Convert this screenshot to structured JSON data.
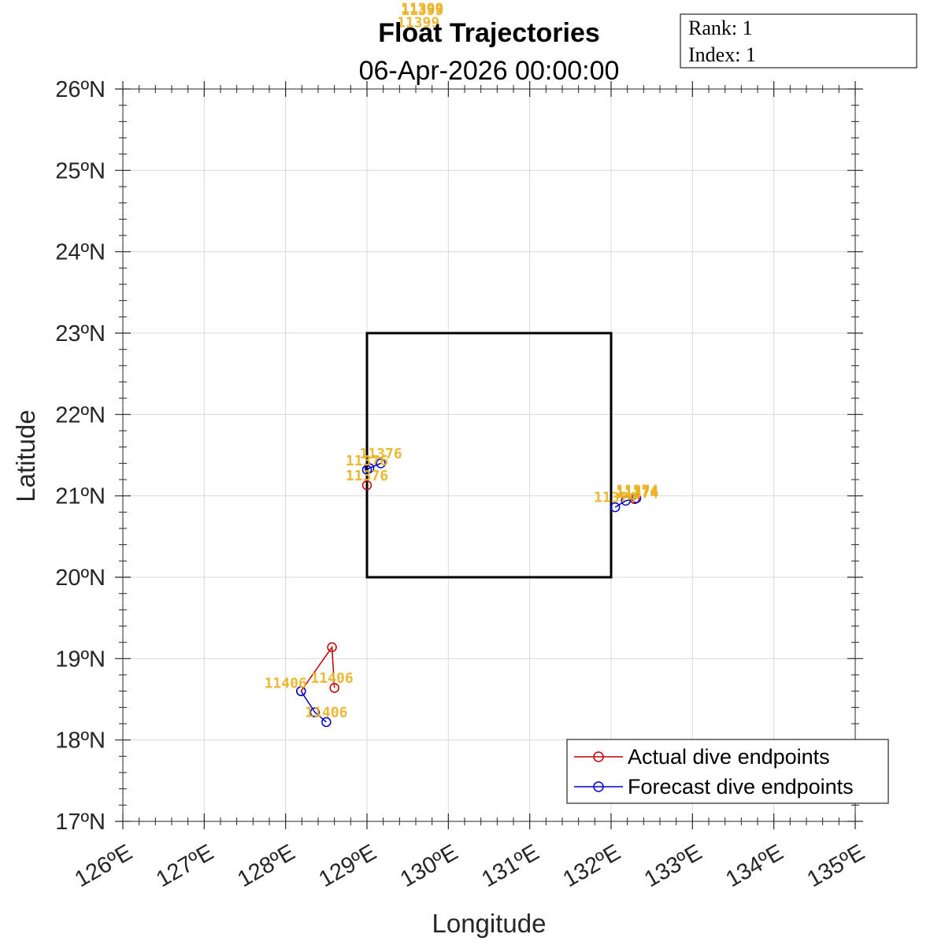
{
  "chart_data": {
    "type": "line",
    "title": "Float Trajectories",
    "subtitle": "06-Apr-2026 00:00:00",
    "xlabel": "Longitude",
    "ylabel": "Latitude",
    "xlim": [
      126,
      135
    ],
    "ylim": [
      17,
      26
    ],
    "grid": true,
    "x_ticks": [
      126,
      127,
      128,
      129,
      130,
      131,
      132,
      133,
      134,
      135
    ],
    "x_tick_labels": [
      "126ºE",
      "127ºE",
      "128ºE",
      "129ºE",
      "130ºE",
      "131ºE",
      "132ºE",
      "133ºE",
      "134ºE",
      "135ºE"
    ],
    "y_ticks": [
      17,
      18,
      19,
      20,
      21,
      22,
      23,
      24,
      25,
      26
    ],
    "y_tick_labels": [
      "17ºN",
      "18ºN",
      "19ºN",
      "20ºN",
      "21ºN",
      "22ºN",
      "23ºN",
      "24ºN",
      "25ºN",
      "26ºN"
    ],
    "box": {
      "lon": [
        129,
        132
      ],
      "lat": [
        20,
        23
      ],
      "color": "#000000"
    },
    "legend": {
      "placement": "bottom-right",
      "entries": [
        {
          "label": "Actual dive endpoints",
          "color": "#C00000"
        },
        {
          "label": "Forecast dive endpoints",
          "color": "#0000CC"
        }
      ]
    },
    "series": [
      {
        "name": "Actual dive endpoints",
        "float": "11376",
        "color": "#C00000",
        "x": [
          129.0
        ],
        "y": [
          21.13
        ]
      },
      {
        "name": "Forecast dive endpoints",
        "float": "11376",
        "color": "#0000CC",
        "x": [
          129.0,
          129.03,
          129.17
        ],
        "y": [
          21.32,
          21.34,
          21.4
        ]
      },
      {
        "name": "Actual dive endpoints",
        "float": "11374",
        "color": "#C00000",
        "x": [
          132.29
        ],
        "y": [
          20.96
        ]
      },
      {
        "name": "Forecast dive endpoints",
        "float": "11374",
        "color": "#0000CC",
        "x": [
          132.05,
          132.18,
          132.31
        ],
        "y": [
          20.86,
          20.94,
          20.97
        ]
      },
      {
        "name": "Actual dive endpoints",
        "float": "11406",
        "color": "#C00000",
        "x": [
          128.19,
          128.57,
          128.6
        ],
        "y": [
          18.6,
          19.14,
          18.64
        ]
      },
      {
        "name": "Forecast dive endpoints",
        "float": "11406",
        "color": "#0000CC",
        "x": [
          128.19,
          128.36,
          128.5
        ],
        "y": [
          18.6,
          18.34,
          18.22
        ]
      }
    ],
    "point_labels": [
      {
        "text": "11399",
        "x": 129.68,
        "y": 26.99
      },
      {
        "text": "11399",
        "x": 129.68,
        "y": 26.97
      },
      {
        "text": "11399",
        "x": 129.63,
        "y": 26.82
      },
      {
        "text": "11376",
        "x": 129.17,
        "y": 21.52
      },
      {
        "text": "11376",
        "x": 129.0,
        "y": 21.43
      },
      {
        "text": "11376",
        "x": 129.0,
        "y": 21.25
      },
      {
        "text": "11374",
        "x": 132.32,
        "y": 21.07
      },
      {
        "text": "11374",
        "x": 132.32,
        "y": 21.05
      },
      {
        "text": "11374",
        "x": 132.32,
        "y": 21.03
      },
      {
        "text": "11374",
        "x": 132.05,
        "y": 20.98
      },
      {
        "text": "11406",
        "x": 128.57,
        "y": 18.76
      },
      {
        "text": "11406",
        "x": 128.0,
        "y": 18.7
      },
      {
        "text": "11406",
        "x": 128.5,
        "y": 18.34
      }
    ],
    "info_box": {
      "lines": [
        "Rank:  1",
        "Index:  1"
      ]
    }
  }
}
